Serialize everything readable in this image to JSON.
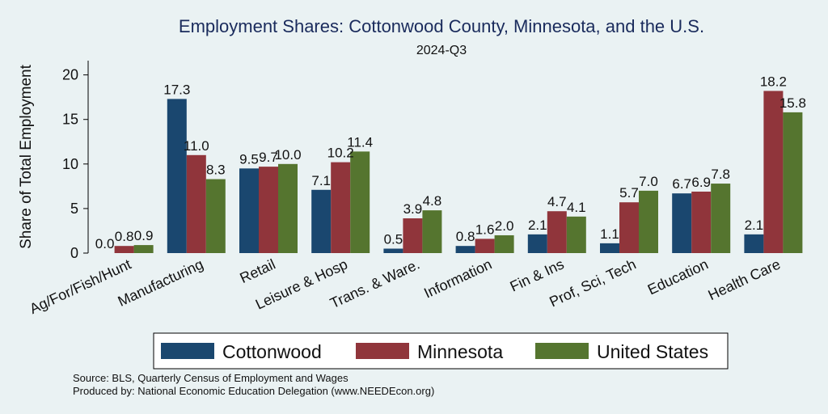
{
  "chart_data": {
    "type": "bar",
    "title": "Employment Shares: Cottonwood County, Minnesota, and the U.S.",
    "subtitle": "2024-Q3",
    "ylabel": "Share of Total Employment",
    "xlabel": "",
    "ylim": [
      0,
      21.6
    ],
    "yticks": [
      "0",
      "5",
      "10",
      "15",
      "20"
    ],
    "categories": [
      "Ag/For/Fish/Hunt",
      "Manufacturing",
      "Retail",
      "Leisure & Hosp",
      "Trans. & Ware.",
      "Information",
      "Fin & Ins",
      "Prof, Sci, Tech",
      "Education",
      "Health Care"
    ],
    "series": [
      {
        "name": "Cottonwood",
        "color": "#1a476f",
        "values": [
          0.0,
          17.3,
          9.5,
          7.1,
          0.5,
          0.8,
          2.1,
          1.1,
          6.7,
          2.1
        ],
        "labels": [
          "0.0",
          "17.3",
          "9.5",
          "7.1",
          "0.5",
          "0.8",
          "2.1",
          "1.1",
          "6.7",
          "2.1"
        ]
      },
      {
        "name": "Minnesota",
        "color": "#90353b",
        "values": [
          0.8,
          11.0,
          9.7,
          10.2,
          3.9,
          1.6,
          4.7,
          5.7,
          6.9,
          18.2
        ],
        "labels": [
          "0.8",
          "11.0",
          "9.7",
          "10.2",
          "3.9",
          "1.6",
          "4.7",
          "5.7",
          "6.9",
          "18.2"
        ]
      },
      {
        "name": "United States",
        "color": "#55752f",
        "values": [
          0.9,
          8.3,
          10.0,
          11.4,
          4.8,
          2.0,
          4.1,
          7.0,
          7.8,
          15.8
        ],
        "labels": [
          "0.9",
          "8.3",
          "10.0",
          "11.4",
          "4.8",
          "2.0",
          "4.1",
          "7.0",
          "7.8",
          "15.8"
        ]
      }
    ],
    "grid": false,
    "legend_position": "bottom"
  },
  "source_lines": [
    "Source: BLS, Quarterly Census of Employment and Wages",
    "Produced by: National Economic Education Delegation (www.NEEDEcon.org)"
  ]
}
